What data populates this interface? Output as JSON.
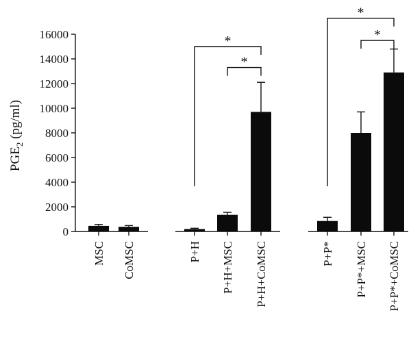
{
  "chart_data": {
    "type": "bar",
    "ylabel": "PGE",
    "ylabel_sub": "2",
    "ylabel_unit": " (pg/ml)",
    "ylim": [
      0,
      16000
    ],
    "yticks": [
      0,
      2000,
      4000,
      6000,
      8000,
      10000,
      12000,
      14000,
      16000
    ],
    "yticks_labels": [
      "0",
      "2000",
      "4000",
      "6000",
      "8000",
      "10000",
      "12000",
      "14000",
      "16000"
    ],
    "categories": [
      "MSC",
      "CoMSC",
      "P+H",
      "P+H+MSC",
      "P+H+CoMSC",
      "P+P*",
      "P+P*+MSC",
      "P+P*+CoMSC"
    ],
    "groups": [
      [
        0,
        1
      ],
      [
        2,
        3,
        4
      ],
      [
        5,
        6,
        7
      ]
    ],
    "values": [
      450,
      380,
      200,
      1350,
      9700,
      850,
      8000,
      12900
    ],
    "errors": [
      120,
      100,
      60,
      200,
      2400,
      300,
      1700,
      1900
    ],
    "bar_color": "#0b0b0b",
    "grid": false,
    "significance": [
      {
        "from": 2,
        "to": 4,
        "label": "*",
        "level": 15000
      },
      {
        "from": 3,
        "to": 4,
        "label": "*",
        "level": 13300
      },
      {
        "from": 5,
        "to": 7,
        "label": "*",
        "level": 17300
      },
      {
        "from": 6,
        "to": 7,
        "label": "*",
        "level": 15500
      }
    ]
  }
}
